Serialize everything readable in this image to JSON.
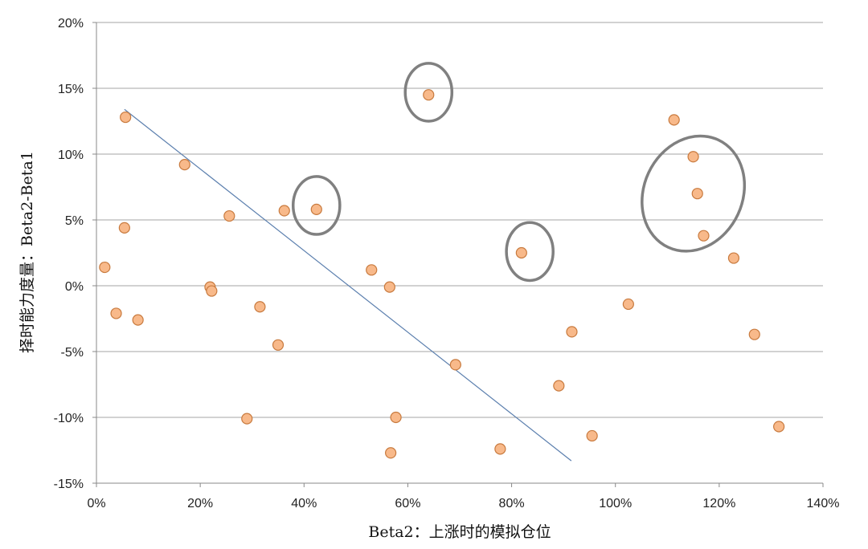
{
  "chart_data": {
    "type": "scatter",
    "xlabel": "Beta2：上涨时的模拟仓位",
    "ylabel": "择时能力度量：Beta2-Beta1",
    "xlim": [
      0,
      1.4
    ],
    "ylim": [
      -0.15,
      0.2
    ],
    "x_ticks": [
      "0%",
      "20%",
      "40%",
      "60%",
      "80%",
      "100%",
      "120%",
      "140%"
    ],
    "y_ticks": [
      "-15%",
      "-10%",
      "-5%",
      "0%",
      "5%",
      "10%",
      "15%",
      "20%"
    ],
    "grid": "horizontal",
    "colors": {
      "point_fill": "#f8b98a",
      "point_stroke": "#c87a3e",
      "trend_line": "#5b7fae",
      "circle": "#808080"
    },
    "series": [
      {
        "points": [
          [
            0.016,
            0.014
          ],
          [
            0.038,
            -0.021
          ],
          [
            0.054,
            0.044
          ],
          [
            0.056,
            0.128
          ],
          [
            0.08,
            -0.026
          ],
          [
            0.17,
            0.092
          ],
          [
            0.219,
            -0.001
          ],
          [
            0.222,
            -0.004
          ],
          [
            0.256,
            0.053
          ],
          [
            0.29,
            -0.101
          ],
          [
            0.315,
            -0.016
          ],
          [
            0.35,
            -0.045
          ],
          [
            0.362,
            0.057
          ],
          [
            0.424,
            0.058
          ],
          [
            0.53,
            0.012
          ],
          [
            0.565,
            -0.001
          ],
          [
            0.567,
            -0.127
          ],
          [
            0.577,
            -0.1
          ],
          [
            0.64,
            0.145
          ],
          [
            0.692,
            -0.06
          ],
          [
            0.778,
            -0.124
          ],
          [
            0.819,
            0.025
          ],
          [
            0.891,
            -0.076
          ],
          [
            0.916,
            -0.035
          ],
          [
            0.955,
            -0.114
          ],
          [
            1.025,
            -0.014
          ],
          [
            1.113,
            0.126
          ],
          [
            1.15,
            0.098
          ],
          [
            1.158,
            0.07
          ],
          [
            1.17,
            0.038
          ],
          [
            1.228,
            0.021
          ],
          [
            1.268,
            -0.037
          ],
          [
            1.315,
            -0.107
          ]
        ]
      }
    ],
    "trend_line": {
      "from": [
        0.054,
        0.134
      ],
      "to": [
        0.915,
        -0.133
      ]
    },
    "highlight_circles": [
      {
        "cx": 0.424,
        "cy": 0.061,
        "rx": 0.045,
        "ry": 0.022
      },
      {
        "cx": 0.64,
        "cy": 0.147,
        "rx": 0.045,
        "ry": 0.022
      },
      {
        "cx": 0.835,
        "cy": 0.026,
        "rx": 0.045,
        "ry": 0.022
      },
      {
        "cx": 1.15,
        "cy": 0.07,
        "rx": 0.095,
        "ry": 0.045,
        "rotate": 25
      }
    ]
  }
}
